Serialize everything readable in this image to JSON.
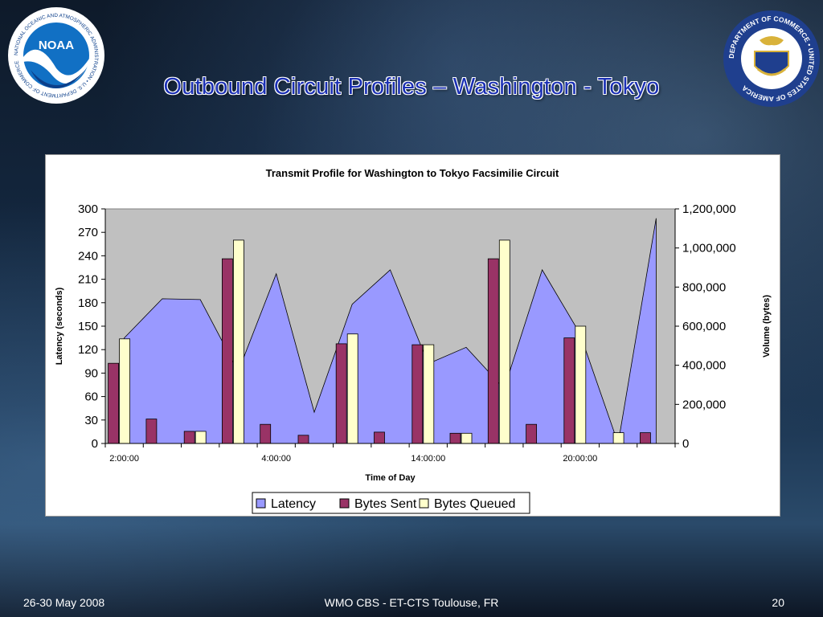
{
  "slide": {
    "title": "Outbound Circuit Profiles – Washington - Tokyo",
    "footer_left": "26-30 May 2008",
    "footer_center": "WMO CBS - ET-CTS Toulouse, FR",
    "footer_right": "20",
    "logos": {
      "left": {
        "icon": "noaa-logo",
        "wordmark": "NOAA",
        "ring_text": "NATIONAL OCEANIC AND ATMOSPHERIC ADMINISTRATION • U.S. DEPARTMENT OF COMMERCE"
      },
      "right": {
        "icon": "department-of-commerce-seal",
        "ring_text": "DEPARTMENT OF COMMERCE • UNITED STATES OF AMERICA"
      }
    }
  },
  "chart_data": {
    "type": "bar",
    "title": "Transmit Profile for Washington to Tokyo Facsimilie Circuit",
    "xlabel": "Time of Day",
    "ylabel": "Latency (seconds)",
    "y2label": "Volume (bytes)",
    "ylim": [
      0,
      300
    ],
    "y2lim": [
      0,
      1200000
    ],
    "yticks": [
      "0",
      "30",
      "60",
      "90",
      "120",
      "150",
      "180",
      "210",
      "240",
      "270",
      "300"
    ],
    "y2ticks": [
      "0",
      "200,000",
      "400,000",
      "600,000",
      "800,000",
      "1,000,000",
      "1,200,000"
    ],
    "xtick_labels": [
      {
        "index": 0,
        "label": "2:00:00"
      },
      {
        "index": 4,
        "label": "4:00:00"
      },
      {
        "index": 8,
        "label": "14:00:00"
      },
      {
        "index": 12,
        "label": "20:00:00"
      }
    ],
    "points": 15,
    "grid": false,
    "plot_background": "#c0c0c0",
    "legend_position": "bottom",
    "series": [
      {
        "name": "Latency",
        "type": "area",
        "axis": "left",
        "color": "#9999ff",
        "values": [
          135,
          185,
          184,
          92,
          217,
          40,
          178,
          222,
          102,
          123,
          70,
          222,
          140,
          0,
          288
        ]
      },
      {
        "name": "Bytes Sent",
        "type": "bar",
        "axis": "right",
        "color": "#993366",
        "values": [
          410000,
          125000,
          62000,
          945000,
          98000,
          42000,
          510000,
          58000,
          505000,
          52000,
          945000,
          98000,
          540000,
          null,
          55000
        ]
      },
      {
        "name": "Bytes Queued",
        "type": "bar",
        "axis": "right",
        "color": "#ffffcc",
        "values": [
          535000,
          null,
          62000,
          1040000,
          null,
          null,
          560000,
          null,
          505000,
          52000,
          1040000,
          null,
          600000,
          55000,
          null
        ]
      }
    ]
  }
}
